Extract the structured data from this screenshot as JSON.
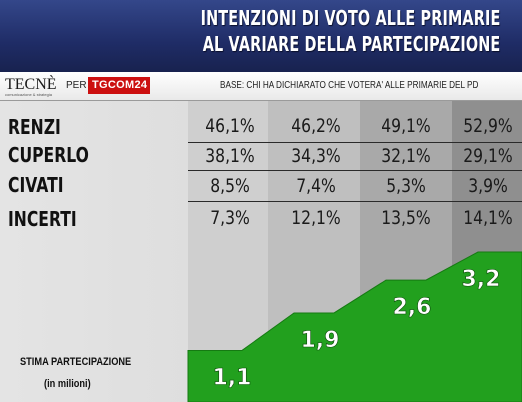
{
  "header": {
    "title_line1": "INTENZIONI DI VOTO ALLE PRIMARIE",
    "title_line2": "AL VARIARE DELLA PARTECIPAZIONE"
  },
  "source": {
    "logo_text": "TECNÈ",
    "logo_subtext": "comunicazione & strategia",
    "per_label": "PER",
    "tgcom_label": "TGCOM24",
    "base_text": "BASE: CHI HA DICHIARATO CHE VOTERA' ALLE PRIMARIE DEL PD"
  },
  "table": {
    "rows": [
      {
        "label": "RENZI",
        "values": [
          "46,1%",
          "46,2%",
          "49,1%",
          "52,9%"
        ]
      },
      {
        "label": "CUPERLO",
        "values": [
          "38,1%",
          "34,3%",
          "32,1%",
          "29,1%"
        ]
      },
      {
        "label": "CIVATI",
        "values": [
          "8,5%",
          "7,4%",
          "5,3%",
          "3,9%"
        ]
      },
      {
        "label": "INCERTI",
        "values": [
          "7,3%",
          "12,1%",
          "13,5%",
          "14,1%"
        ]
      }
    ]
  },
  "participation": {
    "label_line1": "STIMA PARTECIPAZIONE",
    "label_line2": "(in milioni)",
    "value_labels": [
      "1,1",
      "1,9",
      "2,6",
      "3,2"
    ]
  },
  "colors": {
    "header_blue": "#23306a",
    "area_green": "#22a01e",
    "area_green_dark": "#157a12",
    "column_shades": [
      "#cfcfcf",
      "#bdbdbd",
      "#a8a8a8",
      "#8f8f8f"
    ]
  },
  "chart_data": {
    "type": "area",
    "title": "INTENZIONI DI VOTO ALLE PRIMARIE AL VARIARE DELLA PARTECIPAZIONE",
    "xlabel": "STIMA PARTECIPAZIONE (in milioni)",
    "ylabel": "",
    "x": [
      1.1,
      1.9,
      2.6,
      3.2
    ],
    "series": [
      {
        "name": "RENZI",
        "values": [
          46.1,
          46.2,
          49.1,
          52.9
        ]
      },
      {
        "name": "CUPERLO",
        "values": [
          38.1,
          34.3,
          32.1,
          29.1
        ]
      },
      {
        "name": "CIVATI",
        "values": [
          8.5,
          7.4,
          5.3,
          3.9
        ]
      },
      {
        "name": "INCERTI",
        "values": [
          7.3,
          12.1,
          13.5,
          14.1
        ]
      }
    ],
    "participation_millions": [
      1.1,
      1.9,
      2.6,
      3.2
    ],
    "ylim": [
      0,
      3.2
    ],
    "grid": false,
    "legend": "none"
  }
}
